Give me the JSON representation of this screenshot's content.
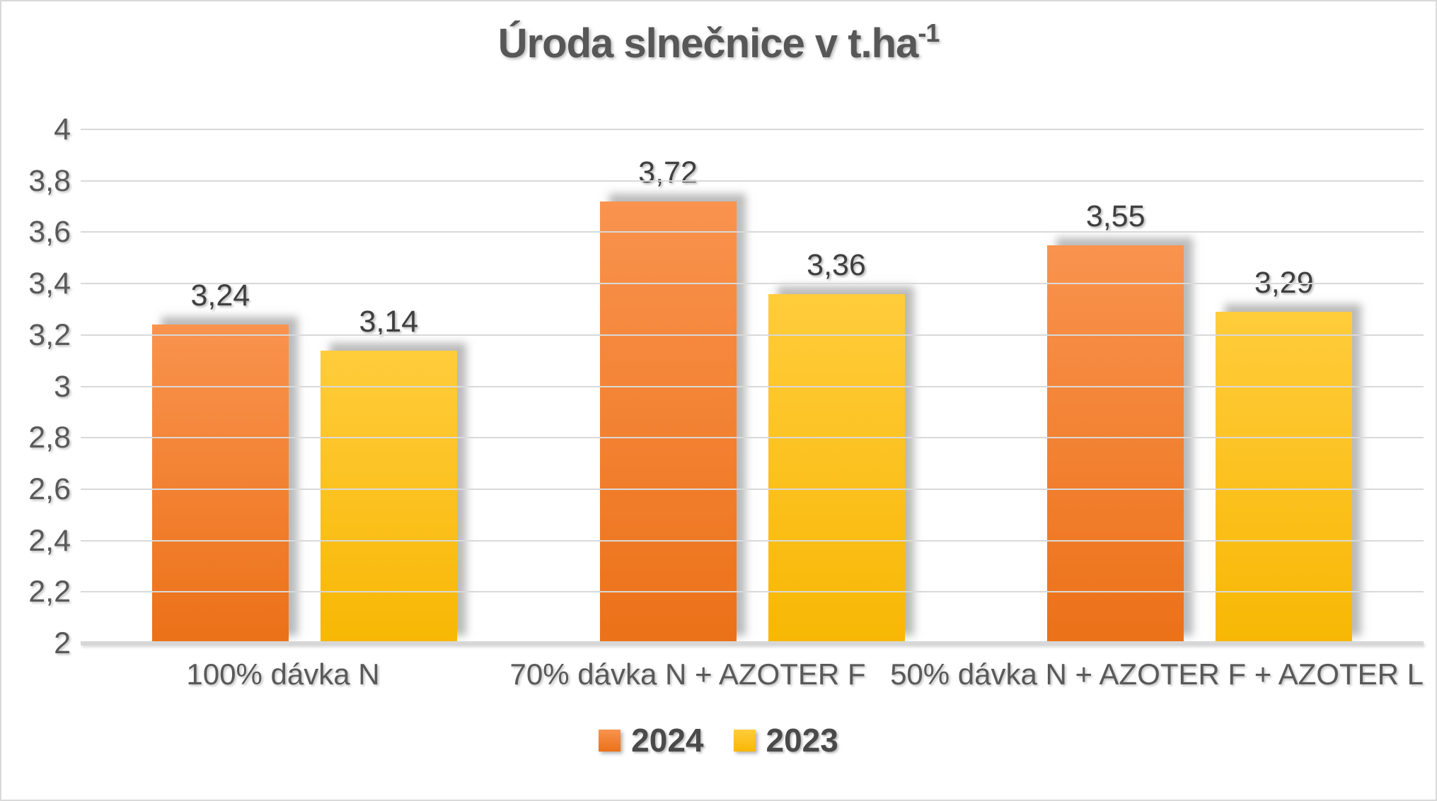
{
  "chart_title": {
    "text": "Úroda slnečnice v t.ha",
    "superscript": "-1"
  },
  "chart_data": {
    "type": "bar",
    "title": "Úroda slnečnice v t.ha⁻¹",
    "categories": [
      "100% dávka N",
      "70% dávka N + AZOTER F",
      "50% dávka N + AZOTER F + AZOTER L"
    ],
    "series": [
      {
        "name": "2024",
        "values": [
          3.24,
          3.72,
          3.55
        ],
        "labels": [
          "3,24",
          "3,72",
          "3,55"
        ],
        "color_top": "#F9934E",
        "color_bottom": "#EC7118"
      },
      {
        "name": "2023",
        "values": [
          3.14,
          3.36,
          3.29
        ],
        "labels": [
          "3,14",
          "3,36",
          "3,29"
        ],
        "color_top": "#FFCC3B",
        "color_bottom": "#F8B704"
      }
    ],
    "ylim": [
      2,
      4
    ],
    "ytick_step": 0.2,
    "ytick_labels": [
      "4",
      "3,8",
      "3,6",
      "3,4",
      "3,2",
      "3",
      "2,8",
      "2,6",
      "2,4",
      "2,2",
      "2"
    ],
    "decimal_separator": ",",
    "grid": true,
    "xlabel": "",
    "ylabel": "",
    "legend_position": "bottom"
  }
}
